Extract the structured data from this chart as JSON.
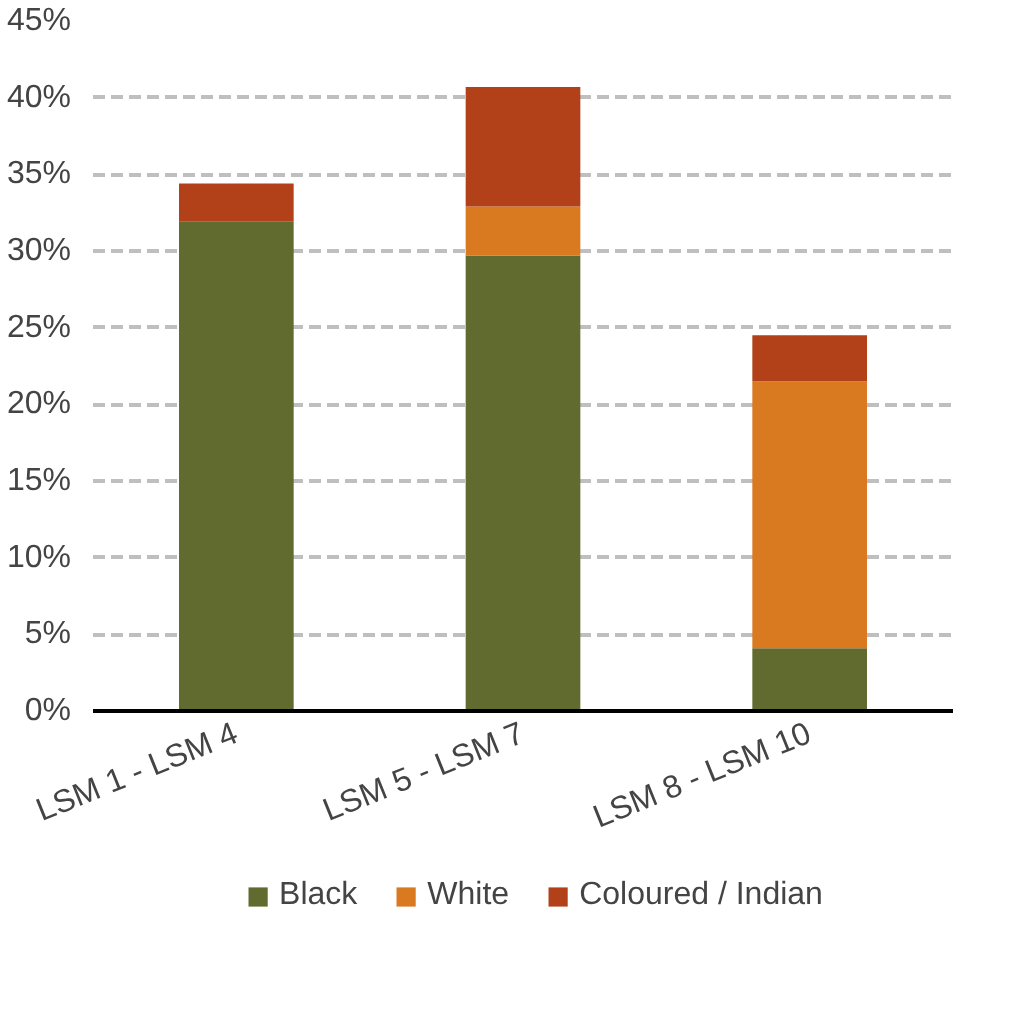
{
  "chart_data": {
    "type": "bar",
    "stacked": true,
    "categories": [
      "LSM 1 - LSM 4",
      "LSM 5 - LSM 7",
      "LSM 8 - LSM 10"
    ],
    "series": [
      {
        "name": "Black",
        "color": "#616b2f",
        "values": [
          31.9,
          29.7,
          4.1
        ]
      },
      {
        "name": "White",
        "color": "#d97920",
        "values": [
          0,
          3.2,
          17.4
        ]
      },
      {
        "name": "Coloured / Indian",
        "color": "#b2411a",
        "values": [
          2.5,
          7.8,
          3.0
        ]
      }
    ],
    "ylim": [
      0,
      45
    ],
    "yticks": [
      {
        "value": 0,
        "label": "0%"
      },
      {
        "value": 5,
        "label": "5%"
      },
      {
        "value": 10,
        "label": "10%"
      },
      {
        "value": 15,
        "label": "15%"
      },
      {
        "value": 20,
        "label": "20%"
      },
      {
        "value": 25,
        "label": "25%"
      },
      {
        "value": 30,
        "label": "30%"
      },
      {
        "value": 35,
        "label": "35%"
      },
      {
        "value": 40,
        "label": "40%"
      },
      {
        "value": 45,
        "label": "45%"
      }
    ],
    "grid": "y",
    "legend": "bottom"
  }
}
